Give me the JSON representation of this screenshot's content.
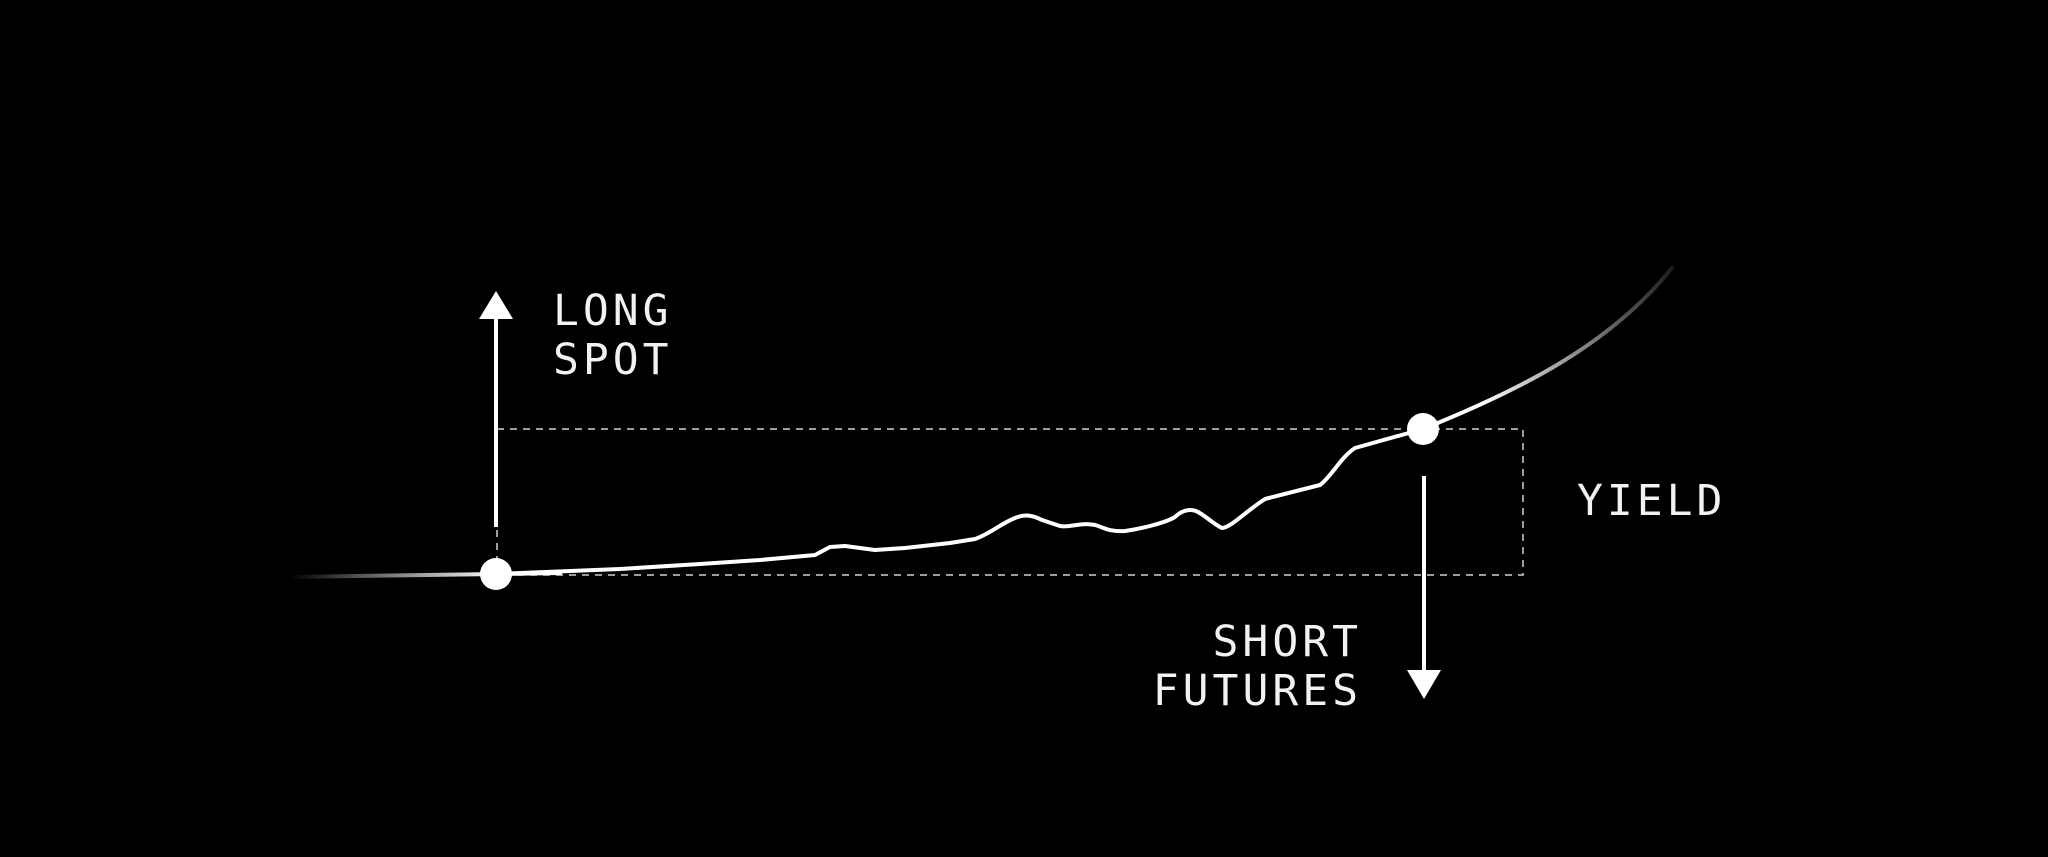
{
  "diagram": {
    "labels": {
      "long_line1": "LONG",
      "long_line2": "SPOT",
      "yield": "YIELD",
      "short_line1": "SHORT",
      "short_line2": "FUTURES"
    },
    "colors": {
      "background": "#000000",
      "curve": "#ffffff",
      "text": "#f2f2f2",
      "guide": "#cfcfcf"
    }
  }
}
